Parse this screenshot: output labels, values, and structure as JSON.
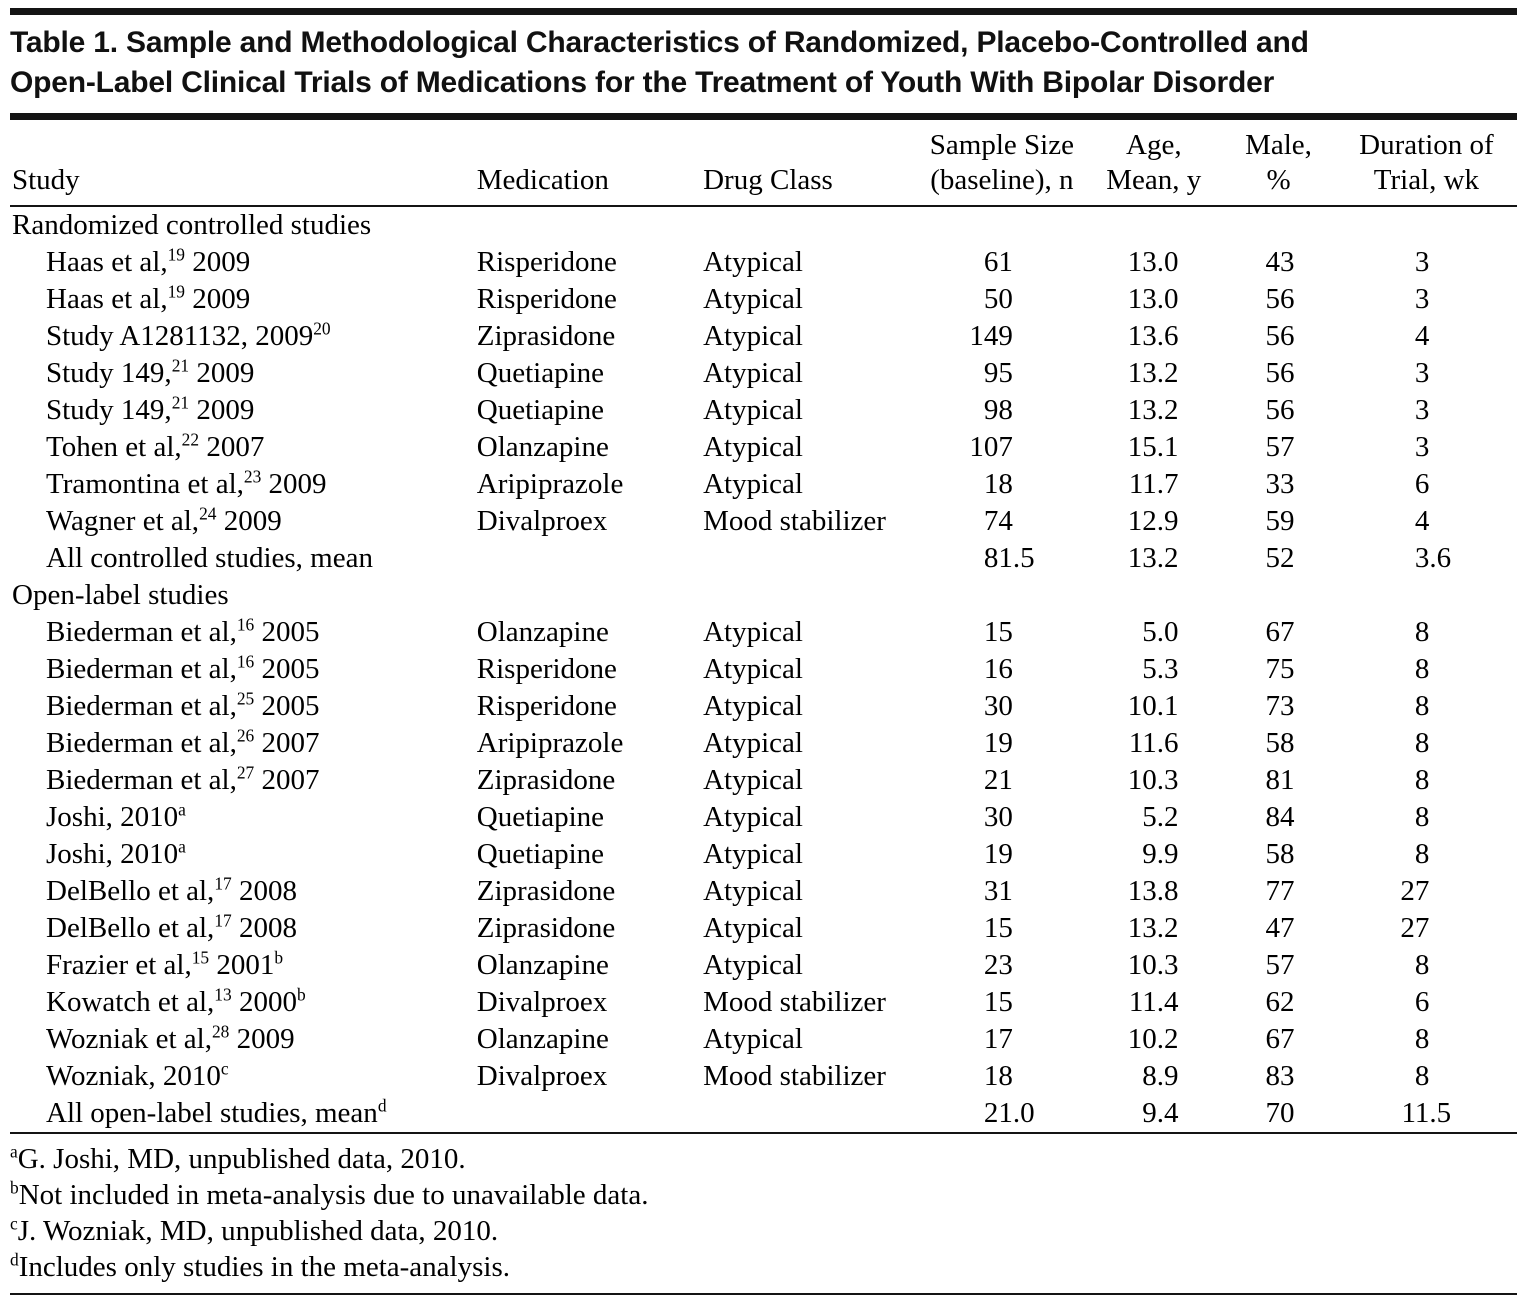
{
  "title_lines": [
    "Table 1. Sample and Methodological Characteristics of Randomized, Placebo-Controlled and",
    "Open-Label Clinical Trials of Medications for the Treatment of Youth With Bipolar Disorder"
  ],
  "columns": [
    {
      "id": "study",
      "lines": [
        "Study"
      ]
    },
    {
      "id": "medication",
      "lines": [
        "Medication"
      ]
    },
    {
      "id": "drug_class",
      "lines": [
        "Drug Class"
      ]
    },
    {
      "id": "sample_size",
      "lines": [
        "Sample Size",
        "(baseline), n"
      ]
    },
    {
      "id": "age",
      "lines": [
        "Age,",
        "Mean, y"
      ]
    },
    {
      "id": "male",
      "lines": [
        "Male,",
        "%"
      ]
    },
    {
      "id": "duration",
      "lines": [
        "Duration of",
        "Trial, wk"
      ]
    }
  ],
  "sections": [
    {
      "label": "Randomized controlled studies",
      "rows": [
        {
          "study": "Haas et al,^19^ 2009",
          "medication": "Risperidone",
          "drug_class": "Atypical",
          "sample_size": "61",
          "age": "13.0",
          "male": "43",
          "duration": "3"
        },
        {
          "study": "Haas et al,^19^ 2009",
          "medication": "Risperidone",
          "drug_class": "Atypical",
          "sample_size": "50",
          "age": "13.0",
          "male": "56",
          "duration": "3"
        },
        {
          "study": "Study A1281132, 2009^20^",
          "medication": "Ziprasidone",
          "drug_class": "Atypical",
          "sample_size": "149",
          "age": "13.6",
          "male": "56",
          "duration": "4"
        },
        {
          "study": "Study 149,^21^ 2009",
          "medication": "Quetiapine",
          "drug_class": "Atypical",
          "sample_size": "95",
          "age": "13.2",
          "male": "56",
          "duration": "3"
        },
        {
          "study": "Study 149,^21^ 2009",
          "medication": "Quetiapine",
          "drug_class": "Atypical",
          "sample_size": "98",
          "age": "13.2",
          "male": "56",
          "duration": "3"
        },
        {
          "study": "Tohen et al,^22^ 2007",
          "medication": "Olanzapine",
          "drug_class": "Atypical",
          "sample_size": "107",
          "age": "15.1",
          "male": "57",
          "duration": "3"
        },
        {
          "study": "Tramontina et al,^23^ 2009",
          "medication": "Aripiprazole",
          "drug_class": "Atypical",
          "sample_size": "18",
          "age": "11.7",
          "male": "33",
          "duration": "6"
        },
        {
          "study": "Wagner et al,^24^ 2009",
          "medication": "Divalproex",
          "drug_class": "Mood stabilizer",
          "sample_size": "74",
          "age": "12.9",
          "male": "59",
          "duration": "4"
        },
        {
          "study": "All controlled studies, mean",
          "medication": "",
          "drug_class": "",
          "sample_size": "81.5",
          "age": "13.2",
          "male": "52",
          "duration": "3.6"
        }
      ]
    },
    {
      "label": "Open-label studies",
      "rows": [
        {
          "study": "Biederman et al,^16^ 2005",
          "medication": "Olanzapine",
          "drug_class": "Atypical",
          "sample_size": "15",
          "age": "5.0",
          "male": "67",
          "duration": "8"
        },
        {
          "study": "Biederman et al,^16^ 2005",
          "medication": "Risperidone",
          "drug_class": "Atypical",
          "sample_size": "16",
          "age": "5.3",
          "male": "75",
          "duration": "8"
        },
        {
          "study": "Biederman et al,^25^ 2005",
          "medication": "Risperidone",
          "drug_class": "Atypical",
          "sample_size": "30",
          "age": "10.1",
          "male": "73",
          "duration": "8"
        },
        {
          "study": "Biederman et al,^26^ 2007",
          "medication": "Aripiprazole",
          "drug_class": "Atypical",
          "sample_size": "19",
          "age": "11.6",
          "male": "58",
          "duration": "8"
        },
        {
          "study": "Biederman et al,^27^ 2007",
          "medication": "Ziprasidone",
          "drug_class": "Atypical",
          "sample_size": "21",
          "age": "10.3",
          "male": "81",
          "duration": "8"
        },
        {
          "study": "Joshi, 2010^a^",
          "medication": "Quetiapine",
          "drug_class": "Atypical",
          "sample_size": "30",
          "age": "5.2",
          "male": "84",
          "duration": "8"
        },
        {
          "study": "Joshi, 2010^a^",
          "medication": "Quetiapine",
          "drug_class": "Atypical",
          "sample_size": "19",
          "age": "9.9",
          "male": "58",
          "duration": "8"
        },
        {
          "study": "DelBello et al,^17^ 2008",
          "medication": "Ziprasidone",
          "drug_class": "Atypical",
          "sample_size": "31",
          "age": "13.8",
          "male": "77",
          "duration": "27"
        },
        {
          "study": "DelBello et al,^17^ 2008",
          "medication": "Ziprasidone",
          "drug_class": "Atypical",
          "sample_size": "15",
          "age": "13.2",
          "male": "47",
          "duration": "27"
        },
        {
          "study": "Frazier et al,^15^ 2001^b^",
          "medication": "Olanzapine",
          "drug_class": "Atypical",
          "sample_size": "23",
          "age": "10.3",
          "male": "57",
          "duration": "8"
        },
        {
          "study": "Kowatch et al,^13^ 2000^b^",
          "medication": "Divalproex",
          "drug_class": "Mood stabilizer",
          "sample_size": "15",
          "age": "11.4",
          "male": "62",
          "duration": "6"
        },
        {
          "study": "Wozniak et al,^28^ 2009",
          "medication": "Olanzapine",
          "drug_class": "Atypical",
          "sample_size": "17",
          "age": "10.2",
          "male": "67",
          "duration": "8"
        },
        {
          "study": "Wozniak, 2010^c^",
          "medication": "Divalproex",
          "drug_class": "Mood stabilizer",
          "sample_size": "18",
          "age": "8.9",
          "male": "83",
          "duration": "8"
        },
        {
          "study": "All open-label studies, mean^d^",
          "medication": "",
          "drug_class": "",
          "sample_size": "21.0",
          "age": "9.4",
          "male": "70",
          "duration": "11.5"
        }
      ]
    }
  ],
  "footnotes": [
    "^a^G. Joshi, MD, unpublished data, 2010.",
    "^b^Not included in meta-analysis due to unavailable data.",
    "^c^J. Wozniak, MD, unpublished data, 2010.",
    "^d^Includes only studies in the meta-analysis."
  ],
  "colors": {
    "rule": "#141414",
    "text": "#000000",
    "background": "#ffffff"
  }
}
